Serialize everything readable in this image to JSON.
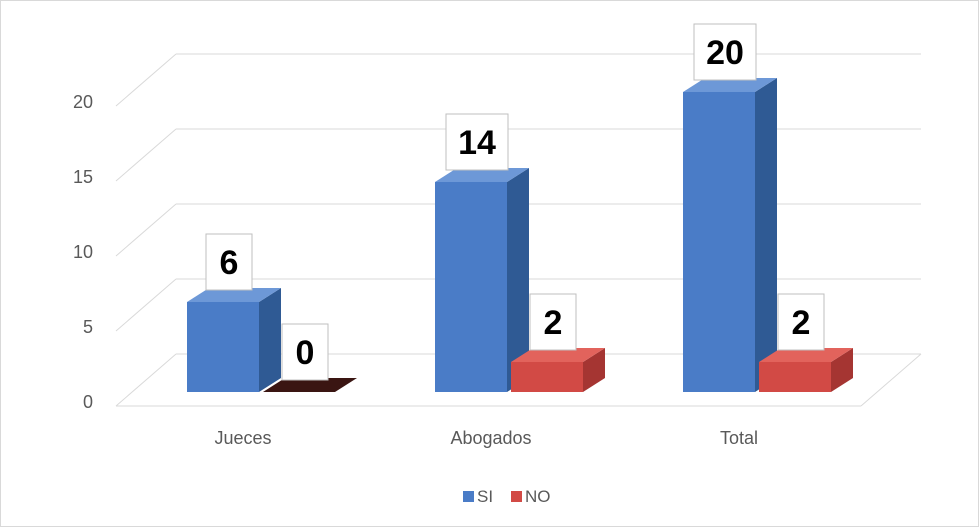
{
  "chart_data": {
    "type": "bar",
    "categories": [
      "Jueces",
      "Abogados",
      "Total"
    ],
    "series": [
      {
        "name": "SI",
        "values": [
          6,
          14,
          20
        ],
        "color": "#4a7cc7"
      },
      {
        "name": "NO",
        "values": [
          0,
          2,
          2
        ],
        "color": "#d24a45"
      }
    ],
    "data_labels": [
      [
        "6",
        "14",
        "20"
      ],
      [
        "0",
        "2",
        "2"
      ]
    ],
    "title": "",
    "xlabel": "",
    "ylabel": "",
    "y_ticks": [
      0,
      5,
      10,
      15,
      20
    ],
    "y_tick_labels": [
      "0",
      "5",
      "10",
      "15",
      "20"
    ],
    "ylim": [
      0,
      20
    ],
    "grid": true,
    "three_d": true,
    "legend_position": "bottom",
    "colors": {
      "si_front": "#4a7cc7",
      "si_side": "#2f5a94",
      "si_top": "#6d98d7",
      "no_front": "#d24a45",
      "no_side": "#a53532",
      "no_top": "#e2635c",
      "grid": "#d9d9d9",
      "axis_text": "#595959",
      "label_border": "#bfbfbf"
    }
  }
}
